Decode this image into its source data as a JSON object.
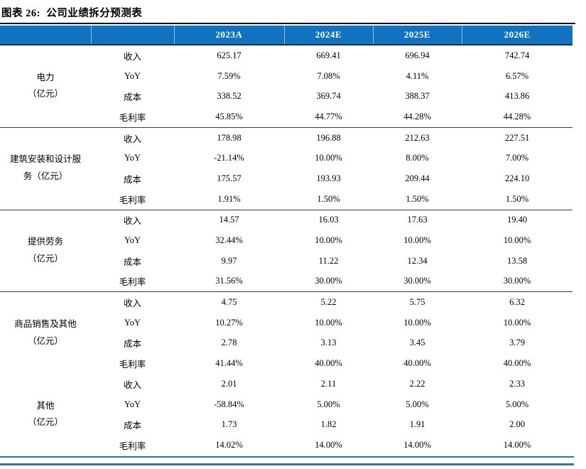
{
  "title": "图表 26:  公司业绩拆分预测表",
  "colors": {
    "header_bg": "#1173BF",
    "header_text": "#FFFFFF",
    "footer_rule_blue": "#2E75B6",
    "block_divider": "#3A3A3A",
    "title_rule": "#000000"
  },
  "chart_data": {
    "type": "table",
    "title": "公司业绩拆分预测表",
    "columns": [
      "2023A",
      "2024E",
      "2025E",
      "2026E"
    ],
    "row_groups": [
      "电力（亿元）",
      "建筑安装和设计服务（亿元）",
      "提供劳务（亿元）",
      "商品销售及其他（亿元）",
      "其他（亿元）"
    ]
  },
  "table": {
    "year_columns": [
      "2023A",
      "2024E",
      "2025E",
      "2026E"
    ],
    "groups": [
      {
        "name_lines": [
          "电力",
          "（亿元）"
        ],
        "divider_after": true,
        "rows": [
          {
            "metric": "收入",
            "values": [
              "625.17",
              "669.41",
              "696.94",
              "742.74"
            ]
          },
          {
            "metric": "YoY",
            "values": [
              "7.59%",
              "7.08%",
              "4.11%",
              "6.57%"
            ]
          },
          {
            "metric": "成本",
            "values": [
              "338.52",
              "369.74",
              "388.37",
              "413.86"
            ]
          },
          {
            "metric": "毛利率",
            "values": [
              "45.85%",
              "44.77%",
              "44.28%",
              "44.28%"
            ]
          }
        ]
      },
      {
        "name_lines": [
          "建筑安装和设计服",
          "务（亿元）"
        ],
        "divider_after": true,
        "rows": [
          {
            "metric": "收入",
            "values": [
              "178.98",
              "196.88",
              "212.63",
              "227.51"
            ]
          },
          {
            "metric": "YoY",
            "values": [
              "-21.14%",
              "10.00%",
              "8.00%",
              "7.00%"
            ]
          },
          {
            "metric": "成本",
            "values": [
              "175.57",
              "193.93",
              "209.44",
              "224.10"
            ]
          },
          {
            "metric": "毛利率",
            "values": [
              "1.91%",
              "1.50%",
              "1.50%",
              "1.50%"
            ]
          }
        ]
      },
      {
        "name_lines": [
          "提供劳务",
          "（亿元）"
        ],
        "divider_after": true,
        "rows": [
          {
            "metric": "收入",
            "values": [
              "14.57",
              "16.03",
              "17.63",
              "19.40"
            ]
          },
          {
            "metric": "YoY",
            "values": [
              "32.44%",
              "10.00%",
              "10.00%",
              "10.00%"
            ]
          },
          {
            "metric": "成本",
            "values": [
              "9.97",
              "11.22",
              "12.34",
              "13.58"
            ]
          },
          {
            "metric": "毛利率",
            "values": [
              "31.56%",
              "30.00%",
              "30.00%",
              "30.00%"
            ]
          }
        ]
      },
      {
        "name_lines": [
          "商品销售及其他",
          "（亿元）"
        ],
        "divider_after": false,
        "rows": [
          {
            "metric": "收入",
            "values": [
              "4.75",
              "5.22",
              "5.75",
              "6.32"
            ]
          },
          {
            "metric": "YoY",
            "values": [
              "10.27%",
              "10.00%",
              "10.00%",
              "10.00%"
            ]
          },
          {
            "metric": "成本",
            "values": [
              "2.78",
              "3.13",
              "3.45",
              "3.79"
            ]
          },
          {
            "metric": "毛利率",
            "values": [
              "41.44%",
              "40.00%",
              "40.00%",
              "40.00%"
            ]
          }
        ]
      },
      {
        "name_lines": [
          "其他",
          "（亿元）"
        ],
        "divider_after": false,
        "rows": [
          {
            "metric": "收入",
            "values": [
              "2.01",
              "2.11",
              "2.22",
              "2.33"
            ]
          },
          {
            "metric": "YoY",
            "values": [
              "-58.84%",
              "5.00%",
              "5.00%",
              "5.00%"
            ]
          },
          {
            "metric": "成本",
            "values": [
              "1.73",
              "1.82",
              "1.91",
              "2.00"
            ]
          },
          {
            "metric": "毛利率",
            "values": [
              "14.02%",
              "14.00%",
              "14.00%",
              "14.00%"
            ]
          }
        ]
      }
    ]
  }
}
